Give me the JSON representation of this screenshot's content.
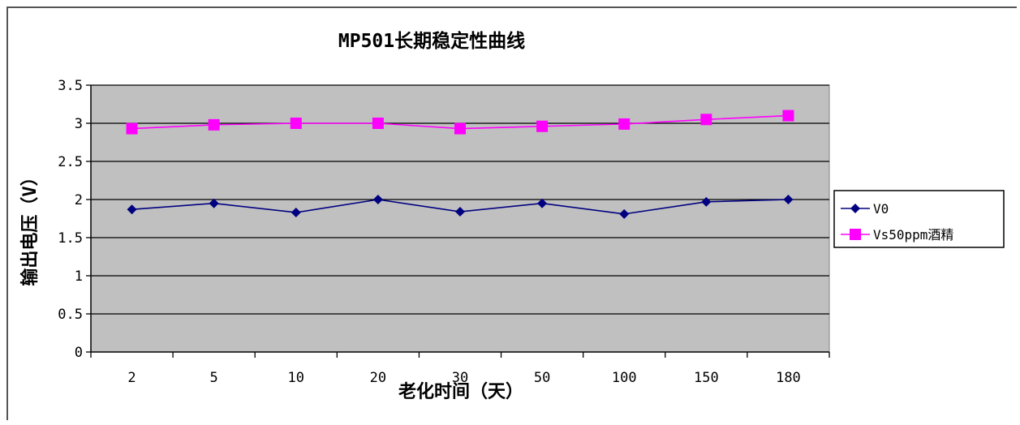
{
  "chart_data": {
    "type": "line",
    "title": "MP501长期稳定性曲线",
    "xlabel": "老化时间（天）",
    "ylabel": "输出电压（V）",
    "categories": [
      "2",
      "5",
      "10",
      "20",
      "30",
      "50",
      "100",
      "150",
      "180"
    ],
    "ylim": [
      0,
      3.5
    ],
    "yticks": [
      "0",
      "0.5",
      "1",
      "1.5",
      "2",
      "2.5",
      "3",
      "3.5"
    ],
    "grid": true,
    "legend_position": "right",
    "plot_background": "#c0c0c0",
    "series": [
      {
        "name": "V0",
        "color": "#000080",
        "marker": "diamond",
        "values": [
          1.87,
          1.95,
          1.83,
          2.0,
          1.84,
          1.95,
          1.81,
          1.97,
          2.0
        ]
      },
      {
        "name": "Vs50ppm酒精",
        "color": "#ff00ff",
        "marker": "square",
        "values": [
          2.93,
          2.98,
          3.0,
          3.0,
          2.93,
          2.96,
          2.99,
          3.05,
          3.1
        ]
      }
    ]
  }
}
